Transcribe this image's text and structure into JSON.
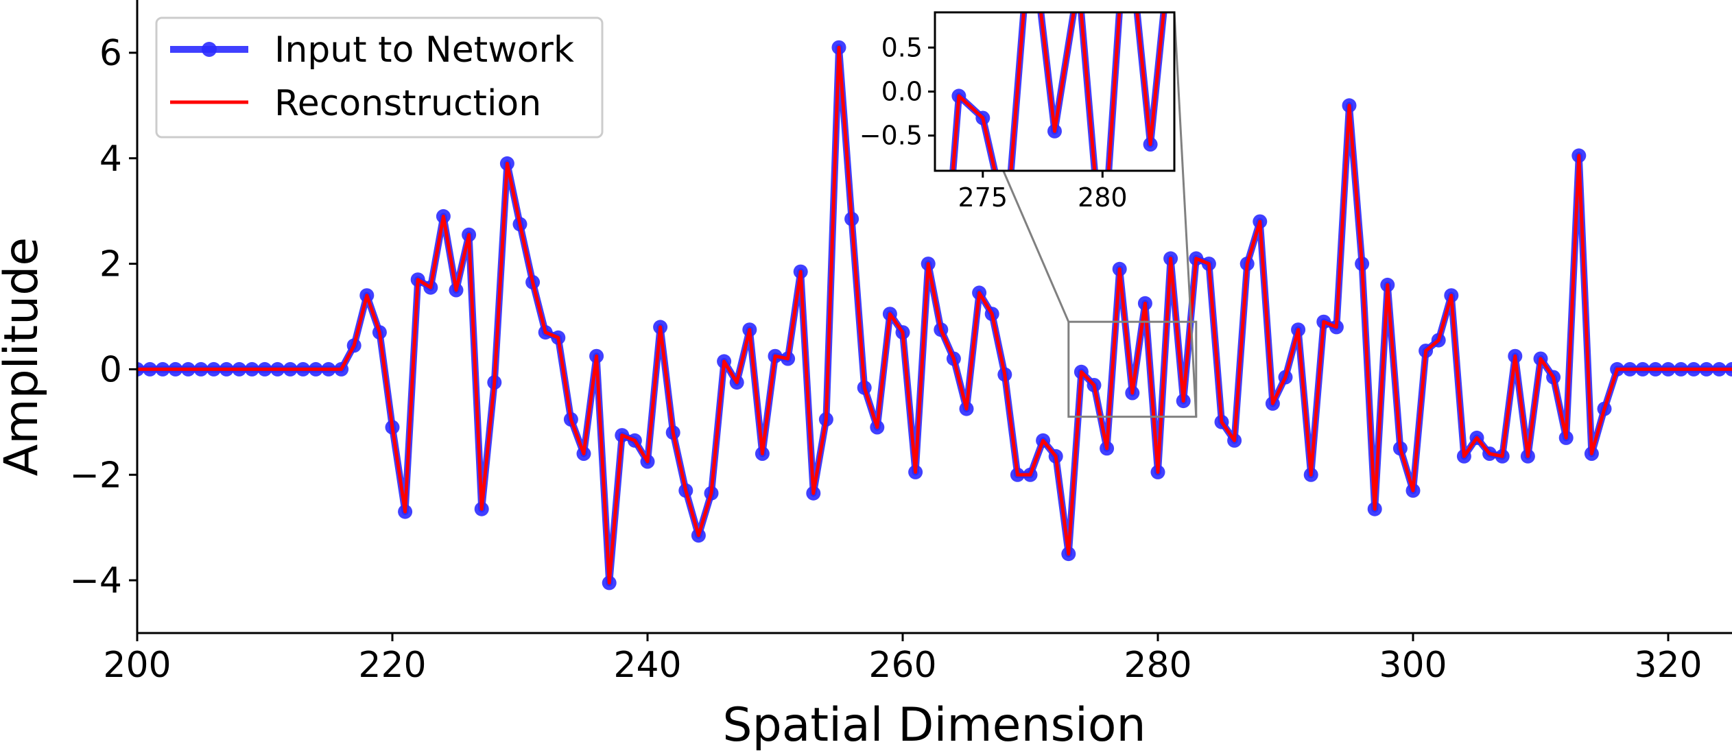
{
  "chart_data": [
    {
      "type": "line",
      "role": "main",
      "xlabel": "Spatial Dimension",
      "ylabel": "Amplitude",
      "xlim": [
        200,
        325
      ],
      "ylim": [
        -5,
        7
      ],
      "xticks": [
        200,
        220,
        240,
        260,
        280,
        300,
        320
      ],
      "yticks": [
        -4,
        -2,
        0,
        2,
        4,
        6
      ],
      "xtick_labels": [
        "200",
        "220",
        "240",
        "260",
        "280",
        "300",
        "320"
      ],
      "ytick_labels": [
        "−4",
        "−2",
        "0",
        "2",
        "4",
        "6"
      ],
      "grid": false,
      "legend_position": "top-left",
      "x_start": 200,
      "values": [
        0,
        0,
        0,
        0,
        0,
        0,
        0,
        0,
        0,
        0,
        0,
        0,
        0,
        0,
        0,
        0,
        0,
        0.45,
        1.4,
        0.7,
        -1.1,
        -2.7,
        1.7,
        1.55,
        2.9,
        1.5,
        2.55,
        -2.65,
        -0.25,
        3.9,
        2.75,
        1.65,
        0.7,
        0.6,
        -0.95,
        -1.6,
        0.25,
        -4.05,
        -1.25,
        -1.35,
        -1.75,
        0.8,
        -1.2,
        -2.3,
        -3.15,
        -2.35,
        0.15,
        -0.25,
        0.75,
        -1.6,
        0.25,
        0.2,
        1.85,
        -2.35,
        -0.95,
        6.1,
        2.85,
        -0.35,
        -1.1,
        1.05,
        0.7,
        -1.95,
        2.0,
        0.75,
        0.2,
        -0.75,
        1.45,
        1.05,
        -0.1,
        -2.0,
        -2.0,
        -1.35,
        -1.65,
        -3.5,
        -0.05,
        -0.3,
        -1.5,
        1.9,
        -0.45,
        1.25,
        -1.95,
        2.1,
        -0.6,
        2.1,
        2.0,
        -1.0,
        -1.35,
        2.0,
        2.8,
        -0.65,
        -0.15,
        0.75,
        -2.0,
        0.9,
        0.8,
        5.0,
        2.0,
        -2.65,
        1.6,
        -1.5,
        -2.3,
        0.35,
        0.55,
        1.4,
        -1.65,
        -1.3,
        -1.6,
        -1.65,
        0.25,
        -1.65,
        0.2,
        -0.15,
        -1.3,
        4.05,
        -1.6,
        -0.75,
        0,
        0,
        0,
        0,
        0,
        0,
        0,
        0,
        0,
        0
      ],
      "series": [
        {
          "name": "Input to Network",
          "color": "#2b2bff",
          "marker": "circle",
          "style": "line+markers"
        },
        {
          "name": "Reconstruction",
          "color": "#ff0000",
          "marker": "none",
          "style": "line"
        }
      ]
    },
    {
      "type": "line",
      "role": "inset-zoom",
      "xlim": [
        273,
        283
      ],
      "ylim": [
        -0.9,
        0.9
      ],
      "xticks": [
        275,
        280
      ],
      "yticks": [
        0.5,
        0.0,
        -0.5
      ],
      "xtick_labels": [
        "275",
        "280"
      ],
      "ytick_labels": [
        "0.5",
        "0.0",
        "−0.5"
      ],
      "zoom_box_color": "#808080",
      "note": "magnified view of the main series over the zoom region"
    }
  ]
}
